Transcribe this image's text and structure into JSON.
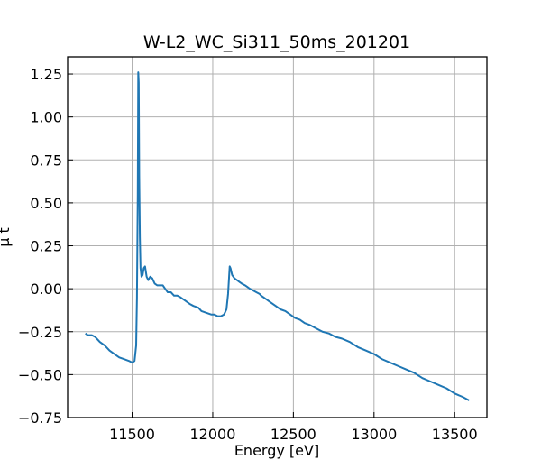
{
  "chart_data": {
    "type": "line",
    "title": "W-L2_WC_Si311_50ms_201201",
    "xlabel": "Energy [eV]",
    "ylabel": "μ t",
    "xlim": [
      11100,
      13700
    ],
    "ylim": [
      -0.75,
      1.35
    ],
    "x_ticks": [
      11500,
      12000,
      12500,
      13000,
      13500
    ],
    "x_tick_labels": [
      "11500",
      "12000",
      "12500",
      "13000",
      "13500"
    ],
    "y_ticks": [
      -0.75,
      -0.5,
      -0.25,
      0.0,
      0.25,
      0.5,
      0.75,
      1.0,
      1.25
    ],
    "y_tick_labels": [
      "−0.75",
      "−0.50",
      "−0.25",
      "0.00",
      "0.25",
      "0.50",
      "0.75",
      "1.00",
      "1.25"
    ],
    "grid": true,
    "series": [
      {
        "color": "#1f77b4",
        "x": [
          11210,
          11225,
          11250,
          11270,
          11300,
          11330,
          11360,
          11390,
          11420,
          11450,
          11480,
          11500,
          11515,
          11525,
          11530,
          11535,
          11538,
          11541,
          11544,
          11548,
          11552,
          11558,
          11565,
          11572,
          11580,
          11590,
          11600,
          11612,
          11625,
          11640,
          11655,
          11670,
          11690,
          11705,
          11720,
          11740,
          11760,
          11780,
          11800,
          11830,
          11860,
          11880,
          11910,
          11930,
          11960,
          11990,
          12010,
          12030,
          12050,
          12070,
          12085,
          12095,
          12100,
          12105,
          12110,
          12120,
          12135,
          12150,
          12165,
          12180,
          12200,
          12215,
          12230,
          12250,
          12270,
          12290,
          12300,
          12330,
          12360,
          12390,
          12420,
          12450,
          12480,
          12510,
          12540,
          12570,
          12600,
          12640,
          12680,
          12720,
          12760,
          12800,
          12850,
          12900,
          12950,
          13000,
          13050,
          13100,
          13150,
          13200,
          13250,
          13300,
          13350,
          13400,
          13450,
          13500,
          13550,
          13590
        ],
        "y": [
          -0.26,
          -0.27,
          -0.27,
          -0.28,
          -0.31,
          -0.33,
          -0.36,
          -0.38,
          -0.4,
          -0.41,
          -0.42,
          -0.43,
          -0.42,
          -0.33,
          -0.05,
          0.55,
          1.26,
          1.2,
          0.65,
          0.3,
          0.12,
          0.07,
          0.08,
          0.12,
          0.13,
          0.07,
          0.05,
          0.07,
          0.06,
          0.03,
          0.02,
          0.02,
          0.02,
          0.0,
          -0.02,
          -0.02,
          -0.04,
          -0.04,
          -0.05,
          -0.07,
          -0.09,
          -0.1,
          -0.11,
          -0.13,
          -0.14,
          -0.15,
          -0.15,
          -0.16,
          -0.16,
          -0.15,
          -0.12,
          -0.03,
          0.05,
          0.13,
          0.12,
          0.08,
          0.06,
          0.05,
          0.04,
          0.03,
          0.02,
          0.01,
          0.0,
          -0.01,
          -0.02,
          -0.03,
          -0.04,
          -0.06,
          -0.08,
          -0.1,
          -0.12,
          -0.13,
          -0.15,
          -0.17,
          -0.18,
          -0.2,
          -0.21,
          -0.23,
          -0.25,
          -0.26,
          -0.28,
          -0.29,
          -0.31,
          -0.34,
          -0.36,
          -0.38,
          -0.41,
          -0.43,
          -0.45,
          -0.47,
          -0.49,
          -0.52,
          -0.54,
          -0.56,
          -0.58,
          -0.61,
          -0.63,
          -0.65
        ]
      }
    ]
  }
}
